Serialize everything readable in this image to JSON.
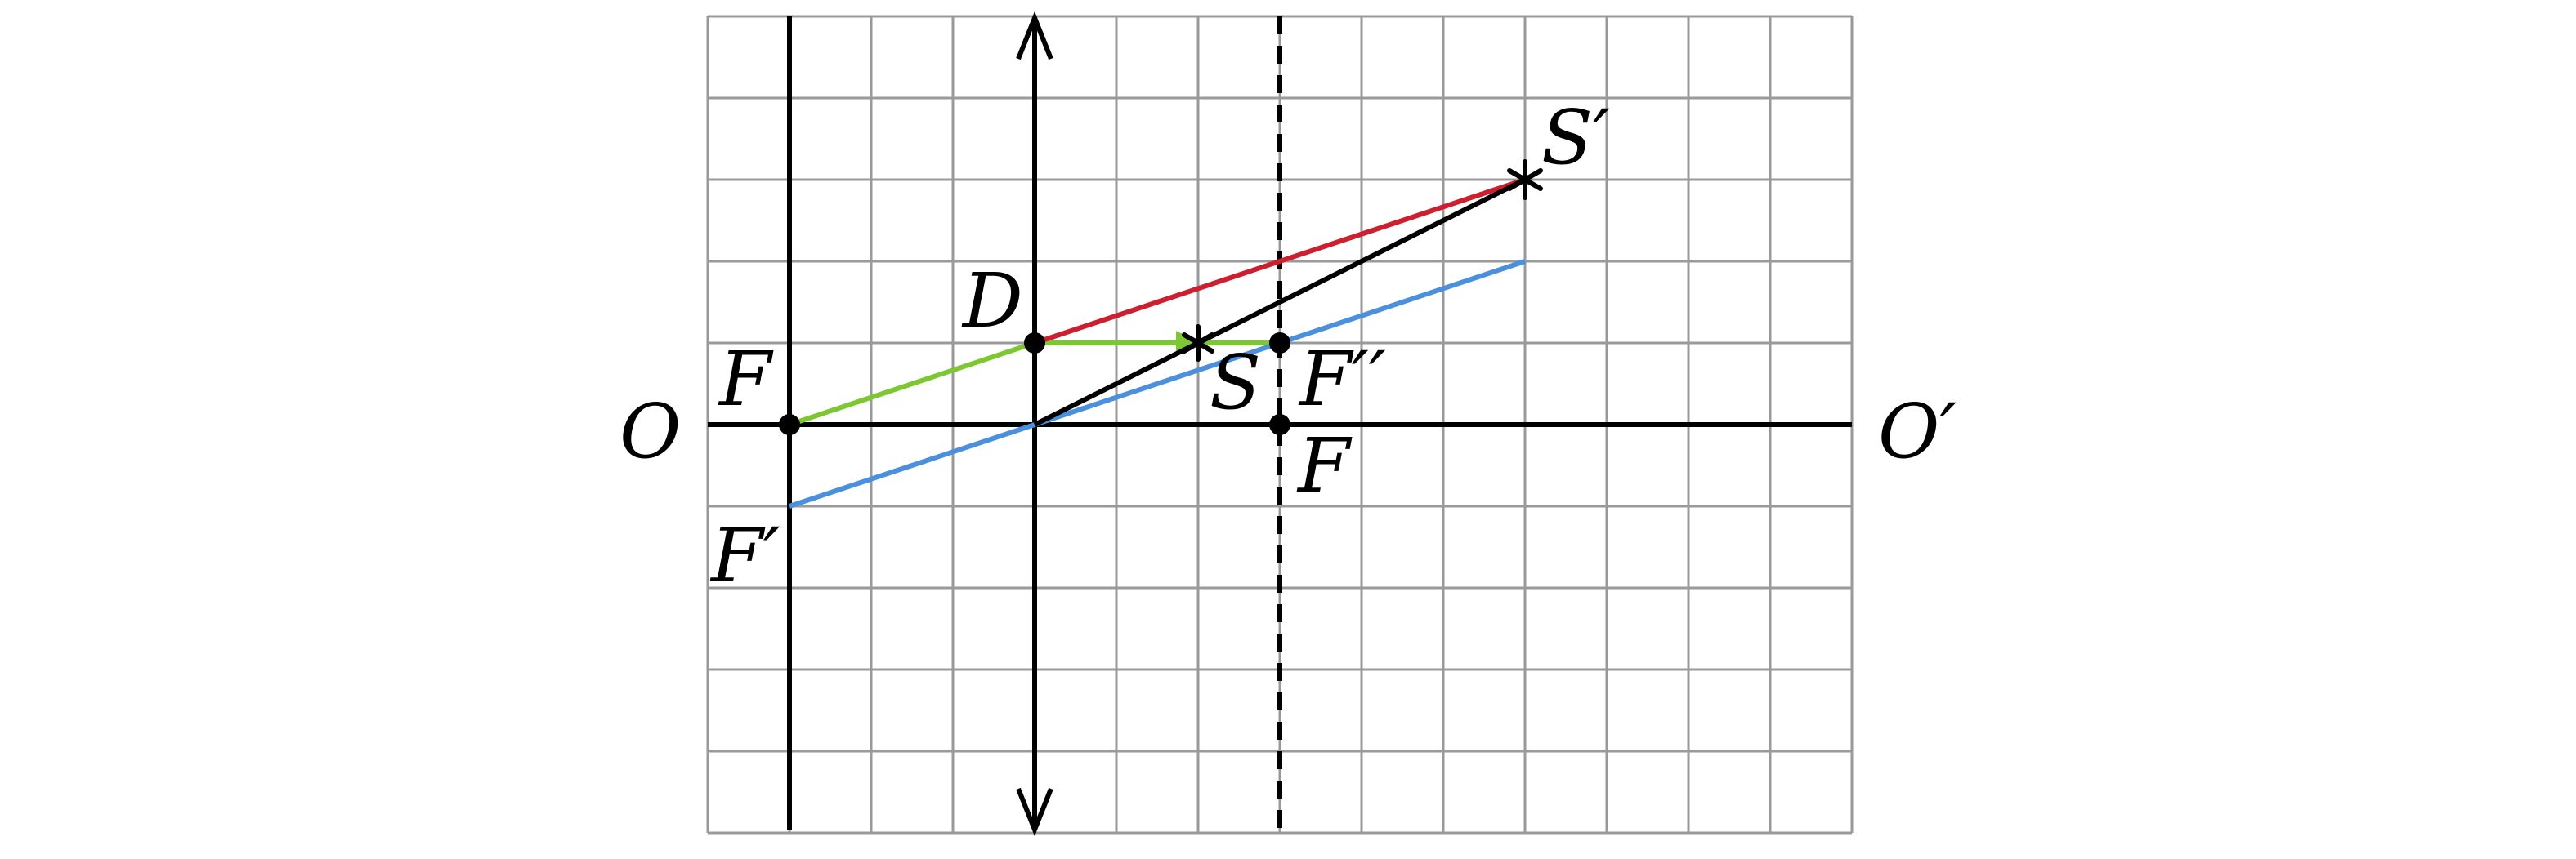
{
  "diagram": {
    "grid": {
      "cols": 14,
      "rows": 10
    },
    "colors": {
      "grid": "#9a9a9a",
      "green_ray": "#7dc832",
      "red_ray": "#cc1f2f",
      "blue_ray": "#4a90dd",
      "black": "#000000"
    },
    "labels": {
      "axis_left": "O",
      "axis_right": "O′",
      "focus_left": "F",
      "focus_right": "F",
      "focus_prime": "F′",
      "focus_double_prime": "F′′",
      "point_d": "D",
      "source": "S",
      "image": "S′"
    }
  }
}
